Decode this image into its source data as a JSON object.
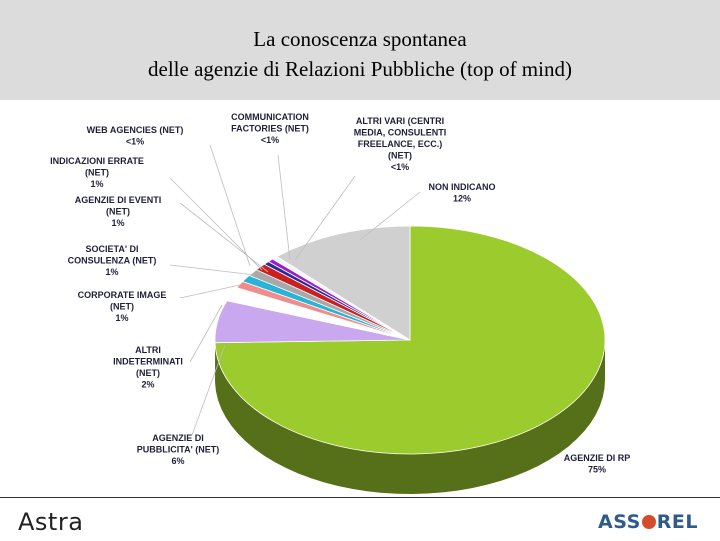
{
  "title": {
    "line1": "La conoscenza spontanea",
    "line2": "delle agenzie di Relazioni Pubbliche (top of mind)"
  },
  "chart_data": {
    "type": "pie",
    "title": "La conoscenza spontanea delle agenzie di Relazioni Pubbliche (top of mind)",
    "slices": [
      {
        "label": "AGENZIE DI RP",
        "value": 75,
        "display": "75%",
        "color": "#9ccb2e"
      },
      {
        "label": "AGENZIE DI PUBBLICITA' (NET)",
        "value": 6,
        "display": "6%",
        "color": "#c9a8f0"
      },
      {
        "label": "ALTRI INDETERMINATI (NET)",
        "value": 2,
        "display": "2%",
        "color": "#ffffff"
      },
      {
        "label": "CORPORATE IMAGE (NET)",
        "value": 1,
        "display": "1%",
        "color": "#f08c8c"
      },
      {
        "label": "SOCIETA' DI CONSULENZA (NET)",
        "value": 1,
        "display": "1%",
        "color": "#2bb3d6"
      },
      {
        "label": "AGENZIE DI EVENTI (NET)",
        "value": 1,
        "display": "1%",
        "color": "#a8a8a8"
      },
      {
        "label": "INDICAZIONI ERRATE (NET)",
        "value": 1,
        "display": "1%",
        "color": "#cc1f1f"
      },
      {
        "label": "WEB AGENCIES (NET)",
        "value": 0.5,
        "display": "<1%",
        "color": "#2a2a9a"
      },
      {
        "label": "COMMUNICATION FACTORIES (NET)",
        "value": 0.5,
        "display": "<1%",
        "color": "#9a1fc8"
      },
      {
        "label": "ALTRI VARI (CENTRI MEDIA, CONSULENTI FREELANCE, ECC.) (NET)",
        "value": 0.5,
        "display": "<1%",
        "color": "#f4f4f4"
      },
      {
        "label": "NON INDICANO",
        "value": 12,
        "display": "12%",
        "color": "#d0d0d0"
      }
    ],
    "labels_text": {
      "rp": [
        "AGENZIE DI RP",
        "75%"
      ],
      "pubb": [
        "AGENZIE DI",
        "PUBBLICITA' (NET)",
        "6%"
      ],
      "altri_ind": [
        "ALTRI",
        "INDETERMINATI",
        "(NET)",
        "2%"
      ],
      "corp": [
        "CORPORATE IMAGE",
        "(NET)",
        "1%"
      ],
      "cons": [
        "SOCIETA' DI",
        "CONSULENZA (NET)",
        "1%"
      ],
      "eventi": [
        "AGENZIE DI EVENTI",
        "(NET)",
        "1%"
      ],
      "errate": [
        "INDICAZIONI ERRATE",
        "(NET)",
        "1%"
      ],
      "web": [
        "WEB AGENCIES (NET)",
        "<1%"
      ],
      "comm": [
        "COMMUNICATION",
        "FACTORIES (NET)",
        "<1%"
      ],
      "vari": [
        "ALTRI VARI (CENTRI",
        "MEDIA, CONSULENTI",
        "FREELANCE, ECC.)",
        "(NET)",
        "<1%"
      ],
      "nonind": [
        "NON INDICANO",
        "12%"
      ]
    }
  },
  "footer": {
    "left_logo": "Astra",
    "right_logo_part1": "ASS",
    "right_logo_part2": "REL"
  }
}
